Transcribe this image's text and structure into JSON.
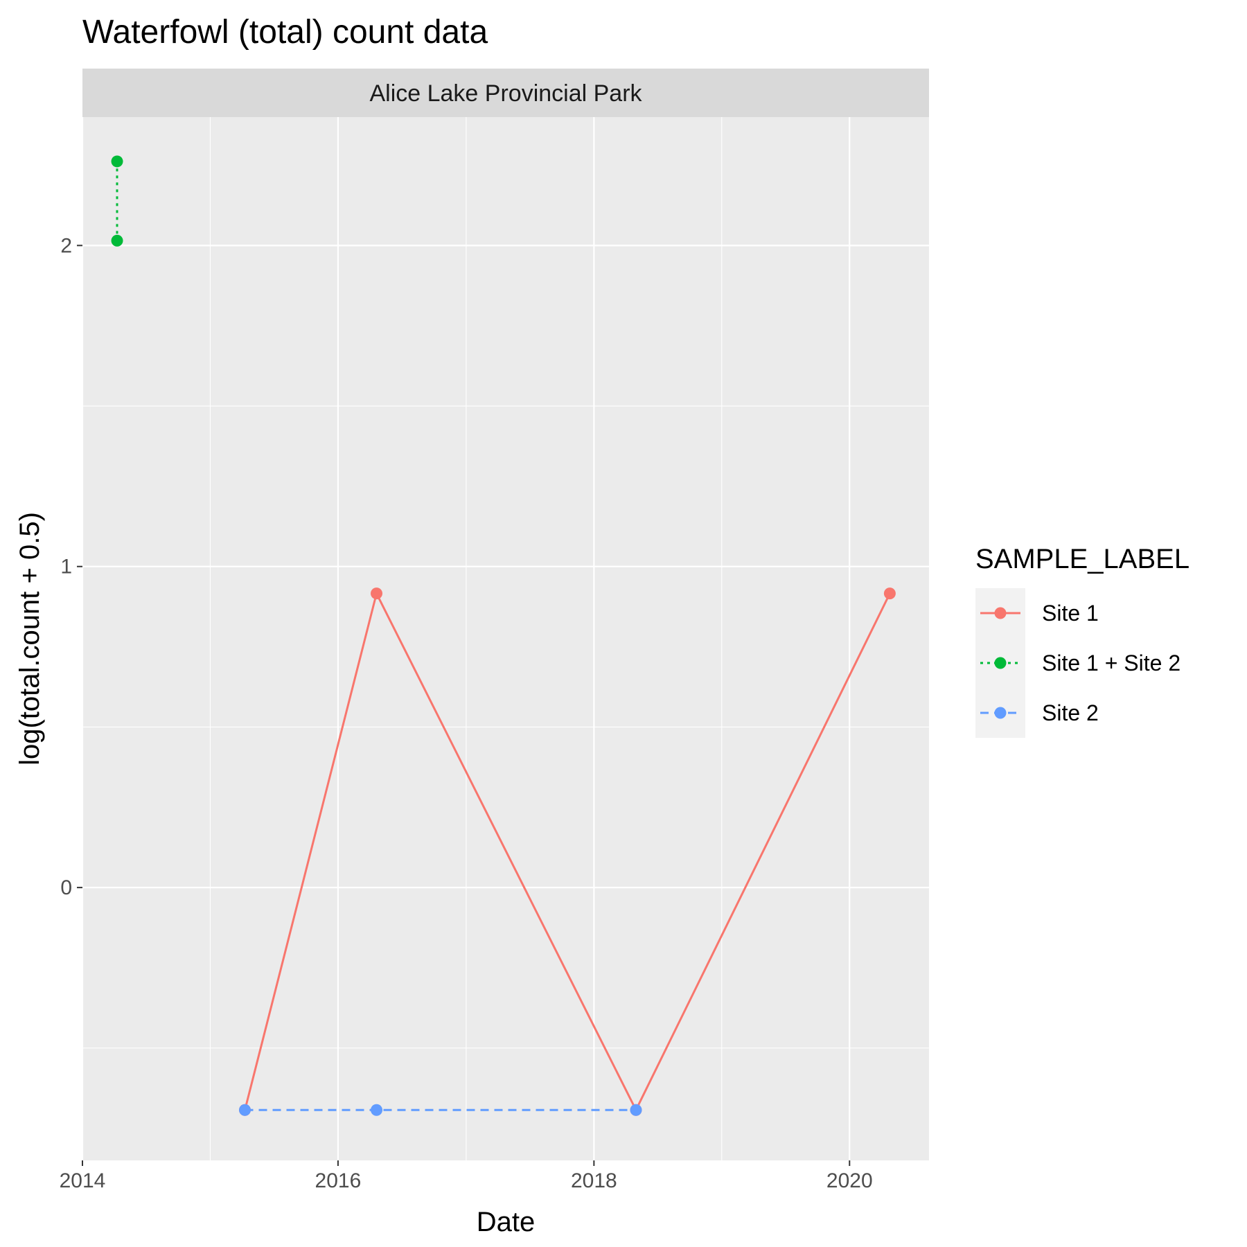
{
  "chart_data": {
    "type": "line",
    "title": "Waterfowl (total) count data",
    "facet_label": "Alice Lake Provincial Park",
    "xlabel": "Date",
    "ylabel": "log(total.count + 0.5)",
    "x_ticks": [
      "2014",
      "2016",
      "2018",
      "2020"
    ],
    "y_ticks": [
      0,
      1,
      2
    ],
    "xlim": [
      "2014-01-01",
      "2020-08-15"
    ],
    "ylim": [
      -0.85,
      2.4
    ],
    "grid": true,
    "legend": {
      "title": "SAMPLE_LABEL",
      "position": "right"
    },
    "series": [
      {
        "name": "Site 1",
        "color": "#F8766D",
        "linetype": "solid",
        "points": [
          {
            "x": "2015-04-10",
            "y": -0.693
          },
          {
            "x": "2016-04-20",
            "y": 0.916
          },
          {
            "x": "2018-05-01",
            "y": -0.693
          },
          {
            "x": "2020-04-25",
            "y": 0.916
          }
        ]
      },
      {
        "name": "Site 1 + Site 2",
        "color": "#00BA38",
        "linetype": "dotted",
        "points": [
          {
            "x": "2014-04-10",
            "y": 2.015
          },
          {
            "x": "2014-04-10",
            "y": 2.262
          }
        ]
      },
      {
        "name": "Site 2",
        "color": "#619CFF",
        "linetype": "dashed",
        "points": [
          {
            "x": "2015-04-10",
            "y": -0.693
          },
          {
            "x": "2016-04-20",
            "y": -0.693
          },
          {
            "x": "2018-05-01",
            "y": -0.693
          }
        ]
      }
    ]
  }
}
